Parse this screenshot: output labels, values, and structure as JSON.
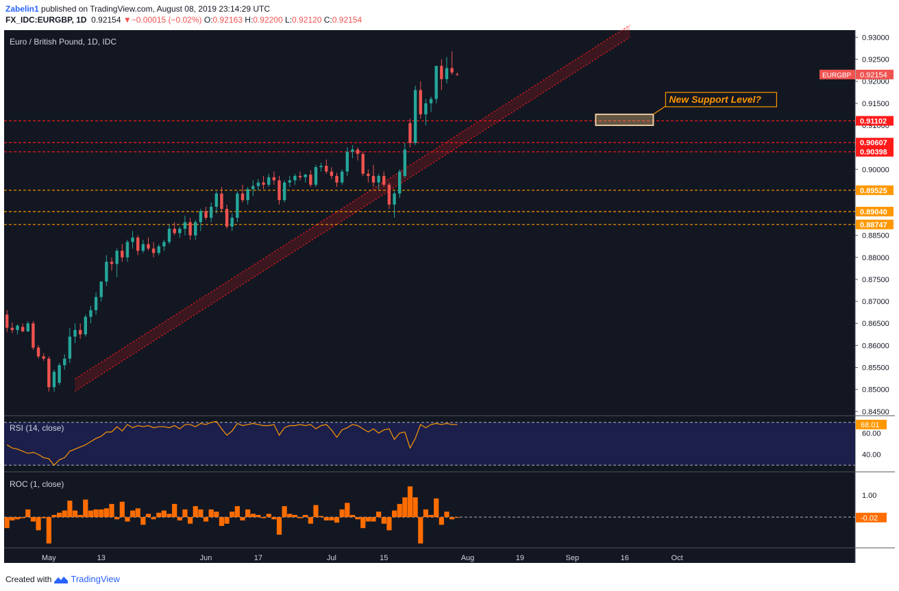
{
  "header": {
    "user": "Zabelin1",
    "published_text": "published on TradingView.com, August 08, 2019 23:14:29 UTC",
    "symbol": "FX_IDC:EURGBP, 1D",
    "last": "0.92154",
    "arrow": "▼",
    "change": "−0.00015 (−0.02%)",
    "o_label": "O:",
    "o_value": "0.92163",
    "h_label": "H:",
    "h_value": "0.92200",
    "l_label": "L:",
    "l_value": "0.92120",
    "c_label": "C:",
    "c_value": "0.92154"
  },
  "footer": {
    "prefix": "Created with",
    "brand": "TradingView"
  },
  "colors": {
    "background": "#131722",
    "up": "#26a69a",
    "down": "#ef5350",
    "resistance": "#ff1a1a",
    "support": "#ff9800",
    "channel": "#ff1a1a",
    "rsi": "#ff9800",
    "rsi_band": "#1b1f4a",
    "roc": "#ff6d00"
  },
  "chart_data": [
    {
      "type": "candlestick",
      "title": "Euro / British Pound, 1D, IDC",
      "ylim": [
        0.8445,
        0.931
      ],
      "y_ticks": [
        "0.93000",
        "0.92500",
        "0.92000",
        "0.91500",
        "0.91000",
        "0.90500",
        "0.90000",
        "0.89500",
        "0.89000",
        "0.88500",
        "0.88000",
        "0.87500",
        "0.87000",
        "0.86500",
        "0.86000",
        "0.85500",
        "0.85000",
        "0.84500"
      ],
      "x_ticks": [
        {
          "label": "May",
          "index": 8
        },
        {
          "label": "13",
          "index": 18
        },
        {
          "label": "Jun",
          "index": 38
        },
        {
          "label": "17",
          "index": 48
        },
        {
          "label": "Jul",
          "index": 62
        },
        {
          "label": "15",
          "index": 72
        },
        {
          "label": "Aug",
          "index": 88
        },
        {
          "label": "19",
          "index": 98
        },
        {
          "label": "Sep",
          "index": 108
        },
        {
          "label": "16",
          "index": 118
        },
        {
          "label": "Oct",
          "index": 128
        }
      ],
      "candles": [
        [
          0.867,
          0.868,
          0.863,
          0.864
        ],
        [
          0.864,
          0.8652,
          0.8628,
          0.8635
        ],
        [
          0.8635,
          0.8648,
          0.8625,
          0.8645
        ],
        [
          0.8642,
          0.865,
          0.863,
          0.8632
        ],
        [
          0.8632,
          0.8655,
          0.863,
          0.865
        ],
        [
          0.865,
          0.8655,
          0.859,
          0.8595
        ],
        [
          0.8595,
          0.86,
          0.857,
          0.8575
        ],
        [
          0.8575,
          0.8582,
          0.8565,
          0.857
        ],
        [
          0.857,
          0.8575,
          0.8495,
          0.8505
        ],
        [
          0.8505,
          0.8545,
          0.8495,
          0.854
        ],
        [
          0.8515,
          0.856,
          0.851,
          0.8555
        ],
        [
          0.8555,
          0.858,
          0.8545,
          0.857
        ],
        [
          0.857,
          0.864,
          0.856,
          0.862
        ],
        [
          0.862,
          0.865,
          0.8605,
          0.8635
        ],
        [
          0.8635,
          0.865,
          0.8615,
          0.8625
        ],
        [
          0.8625,
          0.867,
          0.862,
          0.8665
        ],
        [
          0.8665,
          0.869,
          0.865,
          0.868
        ],
        [
          0.868,
          0.872,
          0.867,
          0.871
        ],
        [
          0.871,
          0.8745,
          0.87,
          0.8745
        ],
        [
          0.8745,
          0.8805,
          0.8735,
          0.879
        ],
        [
          0.879,
          0.88,
          0.877,
          0.8785
        ],
        [
          0.8785,
          0.882,
          0.8755,
          0.8815
        ],
        [
          0.8815,
          0.883,
          0.879,
          0.88
        ],
        [
          0.88,
          0.884,
          0.879,
          0.8835
        ],
        [
          0.8835,
          0.886,
          0.882,
          0.8845
        ],
        [
          0.8845,
          0.885,
          0.8805,
          0.8815
        ],
        [
          0.8815,
          0.884,
          0.881,
          0.883
        ],
        [
          0.883,
          0.8845,
          0.8815,
          0.882
        ],
        [
          0.882,
          0.8835,
          0.88,
          0.881
        ],
        [
          0.881,
          0.883,
          0.8805,
          0.8825
        ],
        [
          0.8825,
          0.884,
          0.8815,
          0.8835
        ],
        [
          0.8835,
          0.8875,
          0.883,
          0.8865
        ],
        [
          0.8865,
          0.888,
          0.885,
          0.8855
        ],
        [
          0.8855,
          0.887,
          0.8845,
          0.8865
        ],
        [
          0.8865,
          0.8895,
          0.885,
          0.888
        ],
        [
          0.888,
          0.889,
          0.884,
          0.885
        ],
        [
          0.885,
          0.8885,
          0.884,
          0.888
        ],
        [
          0.888,
          0.891,
          0.886,
          0.8905
        ],
        [
          0.8905,
          0.8915,
          0.8885,
          0.889
        ],
        [
          0.889,
          0.8925,
          0.888,
          0.8915
        ],
        [
          0.8915,
          0.895,
          0.89,
          0.8945
        ],
        [
          0.8945,
          0.896,
          0.8905,
          0.891
        ],
        [
          0.891,
          0.892,
          0.8865,
          0.887
        ],
        [
          0.887,
          0.89,
          0.886,
          0.889
        ],
        [
          0.889,
          0.895,
          0.888,
          0.8945
        ],
        [
          0.8945,
          0.8965,
          0.8925,
          0.893
        ],
        [
          0.893,
          0.896,
          0.892,
          0.8955
        ],
        [
          0.8955,
          0.8975,
          0.894,
          0.8962
        ],
        [
          0.8962,
          0.8978,
          0.8952,
          0.897
        ],
        [
          0.897,
          0.8985,
          0.8955,
          0.8965
        ],
        [
          0.8965,
          0.899,
          0.896,
          0.8982
        ],
        [
          0.8982,
          0.8995,
          0.8965,
          0.8975
        ],
        [
          0.8975,
          0.8985,
          0.892,
          0.893
        ],
        [
          0.893,
          0.8975,
          0.8925,
          0.897
        ],
        [
          0.897,
          0.8985,
          0.896,
          0.8975
        ],
        [
          0.8975,
          0.899,
          0.8965,
          0.8985
        ],
        [
          0.8985,
          0.8995,
          0.8975,
          0.8982
        ],
        [
          0.8982,
          0.899,
          0.897,
          0.8988
        ],
        [
          0.8988,
          0.8998,
          0.896,
          0.8965
        ],
        [
          0.8965,
          0.901,
          0.896,
          0.9005
        ],
        [
          0.9005,
          0.9015,
          0.8995,
          0.9008
        ],
        [
          0.9008,
          0.9022,
          0.899,
          0.8995
        ],
        [
          0.8995,
          0.9005,
          0.8978,
          0.8985
        ],
        [
          0.8985,
          0.8992,
          0.896,
          0.897
        ],
        [
          0.897,
          0.9,
          0.8965,
          0.8995
        ],
        [
          0.8995,
          0.905,
          0.8985,
          0.904
        ],
        [
          0.904,
          0.9055,
          0.9025,
          0.9045
        ],
        [
          0.9045,
          0.905,
          0.902,
          0.9035
        ],
        [
          0.9035,
          0.904,
          0.8985,
          0.899
        ],
        [
          0.899,
          0.9,
          0.897,
          0.8985
        ],
        [
          0.8985,
          0.901,
          0.896,
          0.897
        ],
        [
          0.897,
          0.899,
          0.8955,
          0.8985
        ],
        [
          0.8985,
          0.8995,
          0.896,
          0.8965
        ],
        [
          0.8965,
          0.897,
          0.891,
          0.892
        ],
        [
          0.892,
          0.895,
          0.889,
          0.8945
        ],
        [
          0.8945,
          0.9,
          0.8935,
          0.8995
        ],
        [
          0.8985,
          0.906,
          0.898,
          0.9045
        ],
        [
          0.9105,
          0.9115,
          0.905,
          0.906
        ],
        [
          0.906,
          0.919,
          0.9055,
          0.918
        ],
        [
          0.918,
          0.92,
          0.9115,
          0.9125
        ],
        [
          0.9125,
          0.916,
          0.91,
          0.915
        ],
        [
          0.915,
          0.9165,
          0.913,
          0.916
        ],
        [
          0.916,
          0.9235,
          0.915,
          0.9235
        ],
        [
          0.9235,
          0.925,
          0.918,
          0.9205
        ],
        [
          0.9205,
          0.9255,
          0.9195,
          0.923
        ],
        [
          0.923,
          0.9268,
          0.9215,
          0.922
        ],
        [
          0.92163,
          0.922,
          0.9212,
          0.92154
        ]
      ],
      "candle_order": "open, high, low, close",
      "horizontal_levels": [
        {
          "value": 0.91102,
          "label": "0.91102",
          "kind": "resistance"
        },
        {
          "value": 0.90607,
          "label": "0.90607",
          "kind": "resistance"
        },
        {
          "value": 0.90398,
          "label": "0.90398",
          "kind": "resistance"
        },
        {
          "value": 0.89525,
          "label": "0.89525",
          "kind": "support"
        },
        {
          "value": 0.8904,
          "label": "0.89040",
          "kind": "support"
        },
        {
          "value": 0.88747,
          "label": "0.88747",
          "kind": "support"
        }
      ],
      "channel": {
        "start_index": 13,
        "end_index": 119,
        "lower_start": 0.8496,
        "lower_end": 0.93,
        "width": 0.0028
      },
      "annotation": {
        "text": "New Support Level?",
        "box_value_top": 0.9125,
        "box_value_bottom": 0.91,
        "box_start_index": 119,
        "box_end_index": 130
      },
      "price_label": {
        "name": "EURGBP",
        "value": "0.92154"
      }
    },
    {
      "type": "line",
      "title": "RSI (14, close)",
      "ylim": [
        25,
        75
      ],
      "y_ticks": [
        "60.00",
        "40.00"
      ],
      "bands": [
        70,
        30
      ],
      "last_label": "68.01",
      "values": [
        49,
        46,
        45,
        43,
        41,
        42,
        40,
        37,
        36,
        30,
        35,
        37,
        43,
        45,
        47,
        49,
        52,
        55,
        57,
        61,
        61,
        66,
        62,
        68,
        65,
        67,
        66,
        67,
        65,
        66,
        66,
        65,
        67,
        64,
        68,
        68,
        66,
        69,
        68,
        70,
        71,
        64,
        58,
        62,
        69,
        67,
        68,
        69,
        68,
        67,
        67,
        68,
        58,
        65,
        67,
        67,
        68,
        67,
        68,
        64,
        67,
        68,
        63,
        56,
        63,
        65,
        68,
        67,
        64,
        61,
        64,
        60,
        63,
        64,
        54,
        60,
        61,
        46,
        55,
        68,
        65,
        68,
        69,
        68,
        69,
        68,
        68
      ]
    },
    {
      "type": "bar",
      "title": "ROC (1, close)",
      "ylim": [
        -1.4,
        2.0
      ],
      "y_ticks": [
        "1.00"
      ],
      "last_label": "-0.02",
      "values": [
        -0.5,
        -0.15,
        -0.1,
        -0.05,
        0.35,
        -0.2,
        -0.6,
        -0.05,
        -1.2,
        0.1,
        0.2,
        0.3,
        0.75,
        0.3,
        0.1,
        0.8,
        0.3,
        0.35,
        0.35,
        0.4,
        0.6,
        -0.1,
        0.7,
        -0.2,
        0.3,
        0.4,
        -0.35,
        0.15,
        -0.1,
        0.2,
        0.3,
        0.15,
        0.6,
        -0.15,
        0.35,
        -0.3,
        0.5,
        0.35,
        -0.2,
        0.35,
        0.25,
        -0.4,
        -0.3,
        0.25,
        0.5,
        -0.15,
        0.35,
        0.15,
        0.1,
        -0.05,
        0.15,
        -0.1,
        -0.8,
        0.5,
        0.15,
        0.1,
        -0.05,
        0.1,
        -0.3,
        0.55,
        0.05,
        -0.15,
        -0.15,
        -0.25,
        0.35,
        0.65,
        0.1,
        -0.1,
        -0.5,
        -0.2,
        -0.2,
        0.25,
        -0.3,
        -0.6,
        0.3,
        0.6,
        0.9,
        1.4,
        0.9,
        -1.2,
        0.35,
        0.1,
        0.85,
        -0.35,
        0.25,
        -0.1,
        -0.02
      ]
    }
  ]
}
